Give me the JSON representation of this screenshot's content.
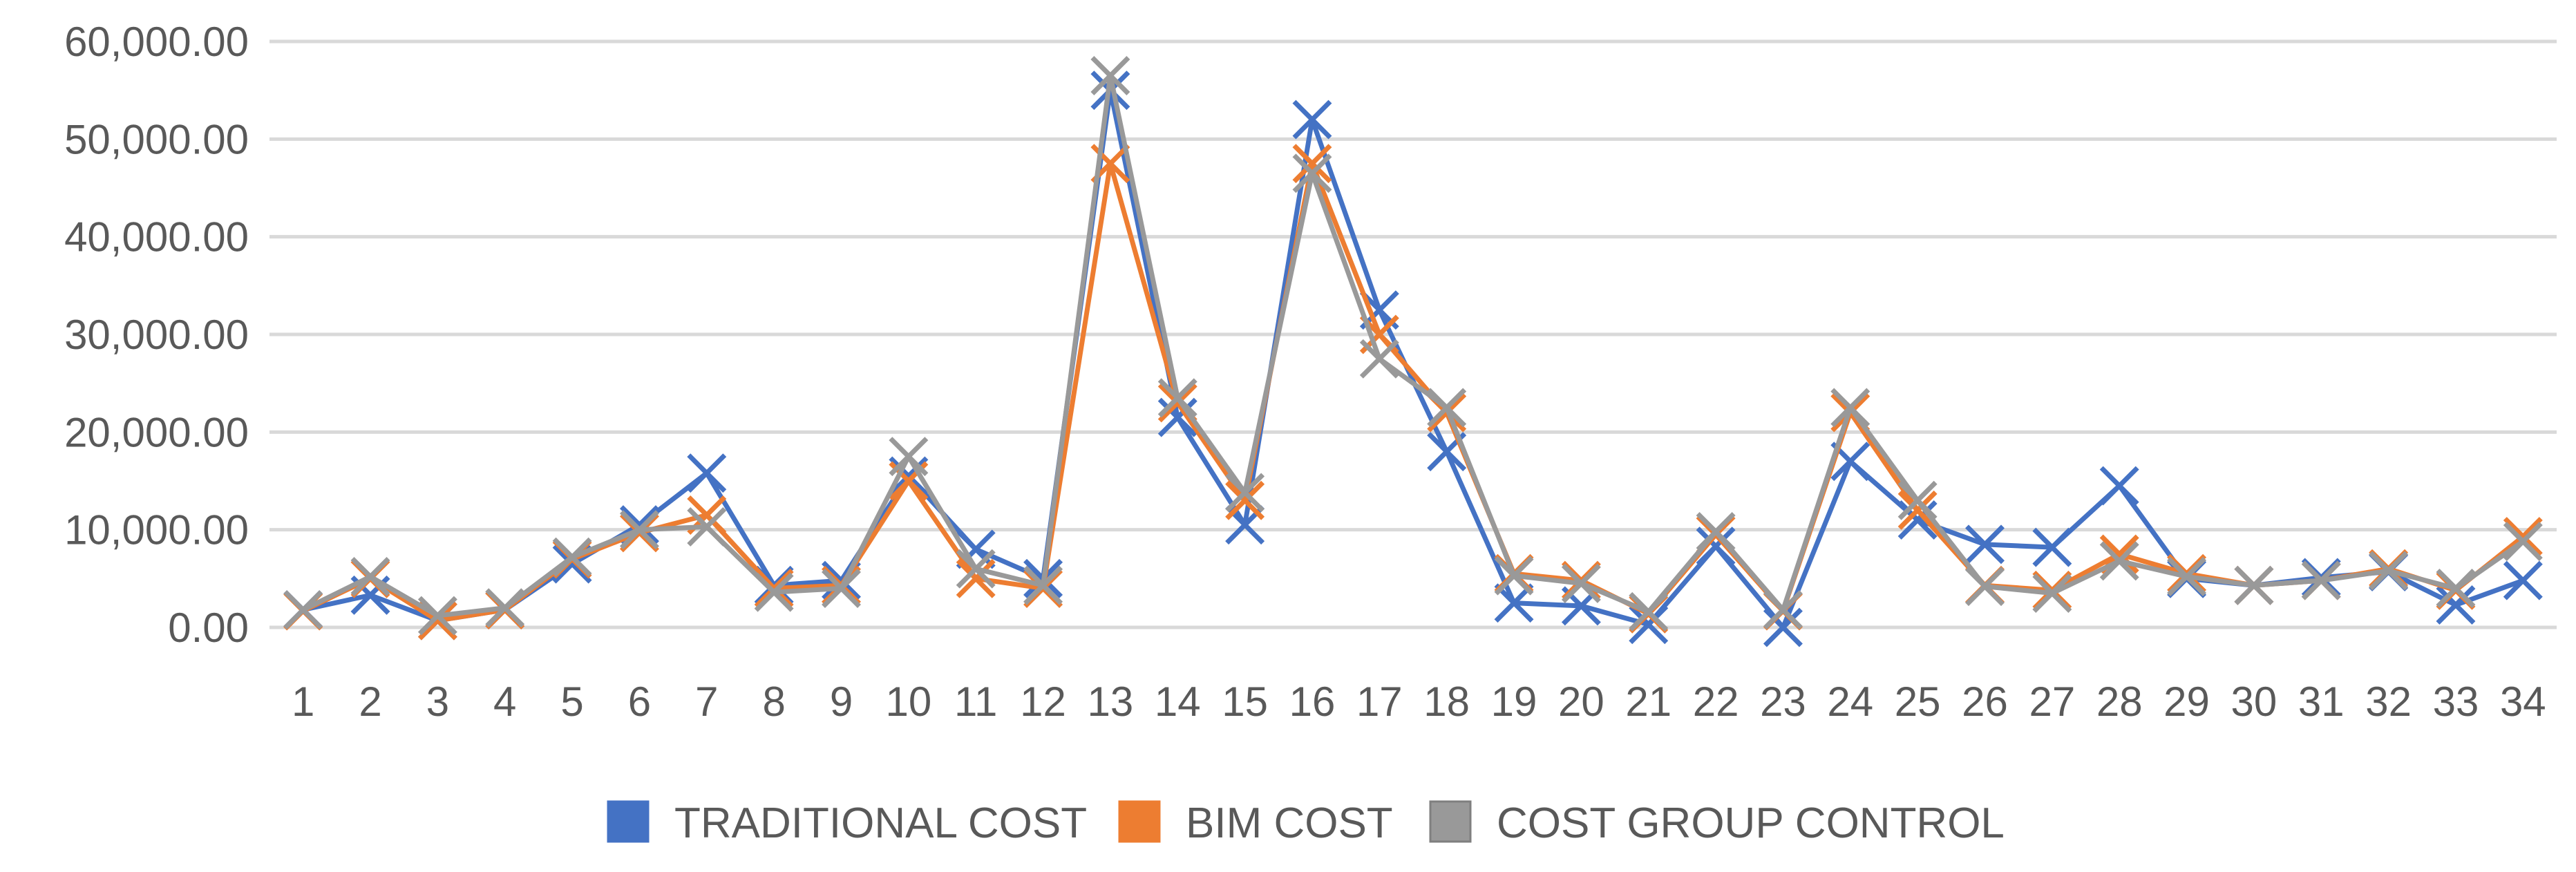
{
  "chart_data": {
    "type": "line",
    "categories": [
      "1",
      "2",
      "3",
      "4",
      "5",
      "6",
      "7",
      "8",
      "9",
      "10",
      "11",
      "12",
      "13",
      "14",
      "15",
      "16",
      "17",
      "18",
      "19",
      "20",
      "21",
      "22",
      "23",
      "24",
      "25",
      "26",
      "27",
      "28",
      "29",
      "30",
      "31",
      "32",
      "33",
      "34"
    ],
    "ylim": [
      0,
      60000
    ],
    "yticks": [
      "0.00",
      "10,000.00",
      "20,000.00",
      "30,000.00",
      "40,000.00",
      "50,000.00",
      "60,000.00"
    ],
    "grid": true,
    "legend_position": "bottom",
    "marker": "x",
    "series": [
      {
        "name": "TRADITIONAL COST",
        "color": "#4472C4",
        "values": [
          1800,
          3300,
          700,
          1800,
          6500,
          10500,
          15800,
          4300,
          4800,
          15500,
          8000,
          5000,
          55000,
          21500,
          10500,
          52000,
          32500,
          18000,
          2500,
          2200,
          300,
          8300,
          0,
          17000,
          11000,
          8500,
          8200,
          14500,
          5000,
          4300,
          5100,
          5700,
          2300,
          4800
        ]
      },
      {
        "name": "BIM COST",
        "color": "#ED7D31",
        "values": [
          1700,
          5000,
          700,
          1800,
          7000,
          9700,
          11500,
          4000,
          4300,
          15000,
          5000,
          4000,
          47500,
          23000,
          13000,
          47500,
          30000,
          22000,
          5500,
          4800,
          1400,
          9500,
          1700,
          22000,
          12000,
          4300,
          3800,
          7500,
          5500,
          4300,
          4800,
          6000,
          3800,
          9300
        ]
      },
      {
        "name": "COST GROUP CONTROL",
        "color": "#999999",
        "values": [
          1800,
          5200,
          1200,
          2000,
          7200,
          10000,
          10300,
          3600,
          4000,
          17500,
          6000,
          4300,
          56500,
          23500,
          13800,
          46500,
          27500,
          22500,
          5300,
          4500,
          1600,
          9800,
          1800,
          22500,
          13000,
          4200,
          3500,
          6800,
          5200,
          4300,
          4800,
          5800,
          4000,
          8800
        ]
      }
    ]
  }
}
